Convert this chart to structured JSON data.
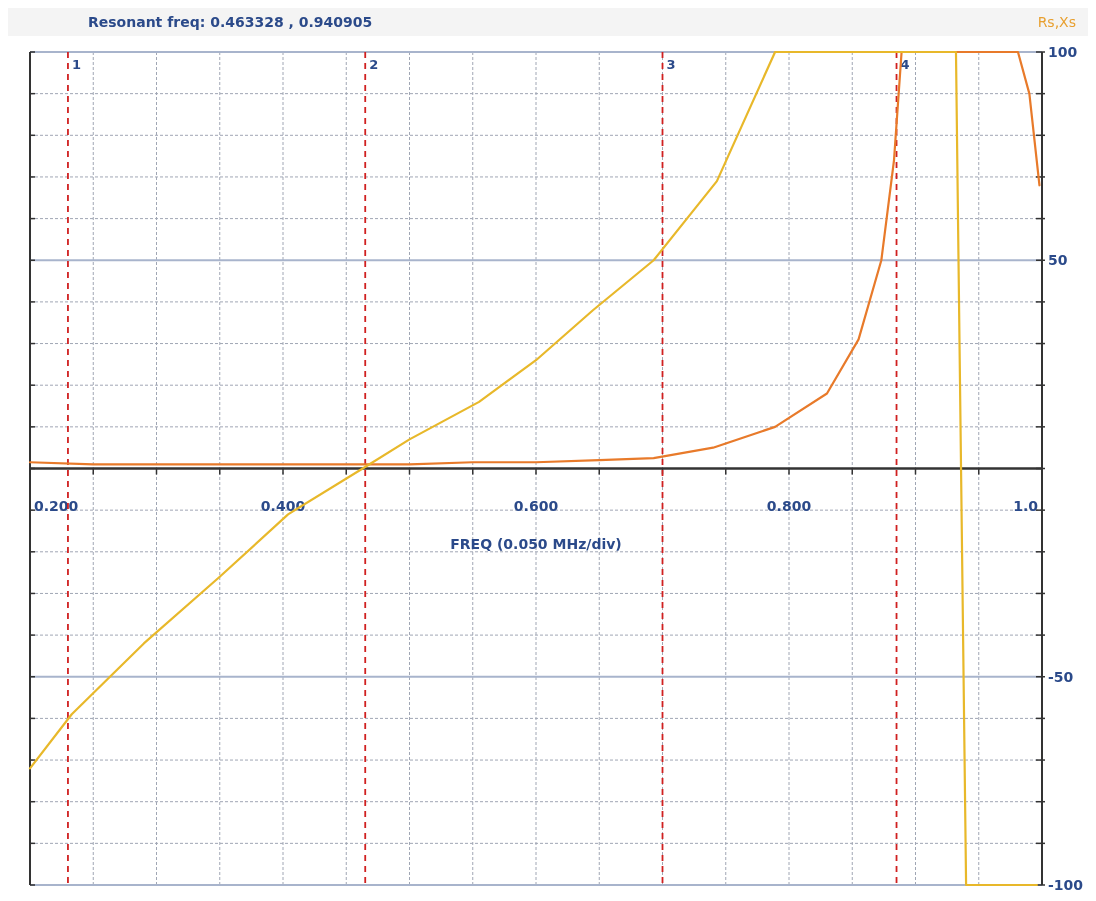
{
  "chart_data": {
    "type": "line",
    "title": "Resonant freq:  0.463328 , 0.940905",
    "xlabel": "FREQ (0.050 MHz/div)",
    "ylabel": "Rs,Xs",
    "xlim": [
      0.2,
      1.0
    ],
    "ylim": [
      -100,
      100
    ],
    "xticks": [
      {
        "value": 0.2,
        "label": "0.200"
      },
      {
        "value": 0.25,
        "label": null
      },
      {
        "value": 0.3,
        "label": null
      },
      {
        "value": 0.35,
        "label": null
      },
      {
        "value": 0.4,
        "label": "0.400"
      },
      {
        "value": 0.45,
        "label": null
      },
      {
        "value": 0.5,
        "label": null
      },
      {
        "value": 0.55,
        "label": null
      },
      {
        "value": 0.6,
        "label": "0.600"
      },
      {
        "value": 0.65,
        "label": null
      },
      {
        "value": 0.7,
        "label": null
      },
      {
        "value": 0.75,
        "label": null
      },
      {
        "value": 0.8,
        "label": "0.800"
      },
      {
        "value": 0.85,
        "label": null
      },
      {
        "value": 0.9,
        "label": null
      },
      {
        "value": 0.95,
        "label": null
      },
      {
        "value": 1.0,
        "label": "1.0"
      }
    ],
    "yticks": [
      {
        "value": -100,
        "label": "-100"
      },
      {
        "value": -90,
        "label": null
      },
      {
        "value": -80,
        "label": null
      },
      {
        "value": -70,
        "label": null
      },
      {
        "value": -60,
        "label": null
      },
      {
        "value": -50,
        "label": "-50"
      },
      {
        "value": -40,
        "label": null
      },
      {
        "value": -30,
        "label": null
      },
      {
        "value": -20,
        "label": null
      },
      {
        "value": -10,
        "label": null
      },
      {
        "value": 0,
        "label": null
      },
      {
        "value": 10,
        "label": null
      },
      {
        "value": 20,
        "label": null
      },
      {
        "value": 30,
        "label": null
      },
      {
        "value": 40,
        "label": null
      },
      {
        "value": 50,
        "label": "50"
      },
      {
        "value": 60,
        "label": null
      },
      {
        "value": 70,
        "label": null
      },
      {
        "value": 80,
        "label": null
      },
      {
        "value": 90,
        "label": null
      },
      {
        "value": 100,
        "label": "100"
      }
    ],
    "grid": true,
    "line_style": "solid",
    "annotations": [
      {
        "text": "1",
        "x": 0.23,
        "y": 96
      },
      {
        "text": "2",
        "x": 0.465,
        "y": 96
      },
      {
        "text": "3",
        "x": 0.7,
        "y": 96
      },
      {
        "text": "4",
        "x": 0.885,
        "y": 96
      }
    ],
    "series": [
      {
        "color": "#e87a2a",
        "x": [
          0.2,
          0.25,
          0.3,
          0.35,
          0.4,
          0.45,
          0.5,
          0.55,
          0.6,
          0.65,
          0.693,
          0.74,
          0.789,
          0.83,
          0.855,
          0.873,
          0.883,
          0.889,
          0.95,
          0.981,
          0.99,
          0.998
        ],
        "values": [
          1.5,
          1,
          1,
          1,
          1,
          1,
          1,
          1.5,
          1.5,
          2,
          2.5,
          5,
          10,
          18,
          31,
          50,
          74,
          100,
          100,
          100,
          90,
          68
        ]
      },
      {
        "color": "#e8b82a",
        "x": [
          0.2,
          0.233,
          0.29,
          0.35,
          0.404,
          0.463,
          0.5,
          0.555,
          0.6,
          0.645,
          0.693,
          0.743,
          0.789,
          0.85,
          0.932,
          0.94,
          0.996
        ],
        "values": [
          -72,
          -59,
          -42,
          -26,
          -11,
          0,
          7,
          16,
          26,
          38,
          50,
          69,
          100,
          100,
          100,
          -100,
          -100
        ]
      }
    ],
    "ref_lines": [
      {
        "axis": "x",
        "value": 0.23,
        "color": "#d02020",
        "line_style": "dashed"
      },
      {
        "axis": "x",
        "value": 0.465,
        "color": "#d02020",
        "line_style": "dashed"
      },
      {
        "axis": "x",
        "value": 0.7,
        "color": "#d02020",
        "line_style": "dashed"
      },
      {
        "axis": "x",
        "value": 0.885,
        "color": "#d02020",
        "line_style": "dashed"
      }
    ]
  }
}
